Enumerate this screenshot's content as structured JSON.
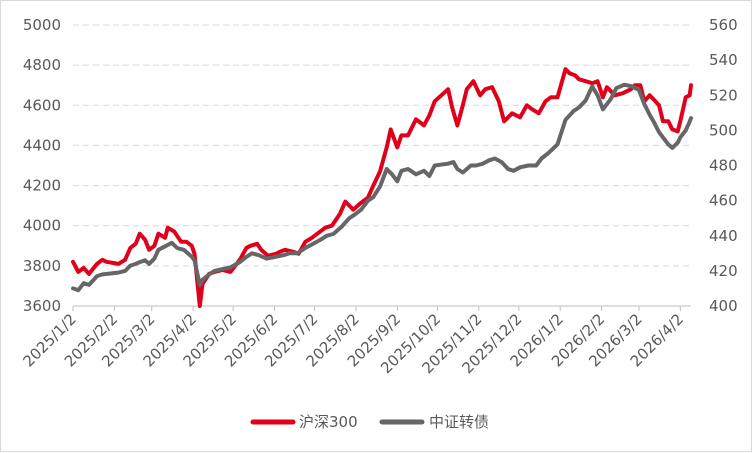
{
  "chart_data": {
    "type": "line",
    "title": "",
    "xlabel": "",
    "ylabel_left": "",
    "ylabel_right": "",
    "x_tick_labels": [
      "2025/1/2",
      "2025/2/2",
      "2025/3/2",
      "2025/4/2",
      "2025/5/2",
      "2025/6/2",
      "2025/7/2",
      "2025/8/2",
      "2025/9/2",
      "2025/10/2",
      "2025/11/2",
      "2025/12/2",
      "2026/1/2",
      "2026/2/2",
      "2026/3/2",
      "2026/4/2"
    ],
    "y_left": {
      "min": 3600,
      "max": 5000,
      "ticks": [
        3600,
        3800,
        4000,
        4200,
        4400,
        4600,
        4800,
        5000
      ]
    },
    "y_right": {
      "min": 400,
      "max": 560,
      "ticks": [
        400,
        420,
        440,
        460,
        480,
        500,
        520,
        540,
        560
      ]
    },
    "x_range": [
      "2025-01-02",
      "2026-04-10"
    ],
    "grid": "horizontal-dashed",
    "legend_position": "bottom",
    "series": [
      {
        "name": "沪深300",
        "axis": "left",
        "color": "#e0001b",
        "points": [
          [
            "2025-01-02",
            3820
          ],
          [
            "2025-01-06",
            3770
          ],
          [
            "2025-01-10",
            3790
          ],
          [
            "2025-01-14",
            3760
          ],
          [
            "2025-01-20",
            3810
          ],
          [
            "2025-01-24",
            3830
          ],
          [
            "2025-01-27",
            3820
          ],
          [
            "2025-02-05",
            3810
          ],
          [
            "2025-02-10",
            3830
          ],
          [
            "2025-02-14",
            3890
          ],
          [
            "2025-02-18",
            3910
          ],
          [
            "2025-02-21",
            3960
          ],
          [
            "2025-02-25",
            3930
          ],
          [
            "2025-02-28",
            3880
          ],
          [
            "2025-03-04",
            3900
          ],
          [
            "2025-03-07",
            3960
          ],
          [
            "2025-03-12",
            3940
          ],
          [
            "2025-03-14",
            3990
          ],
          [
            "2025-03-19",
            3970
          ],
          [
            "2025-03-24",
            3920
          ],
          [
            "2025-03-28",
            3920
          ],
          [
            "2025-04-01",
            3900
          ],
          [
            "2025-04-03",
            3860
          ],
          [
            "2025-04-07",
            3600
          ],
          [
            "2025-04-09",
            3710
          ],
          [
            "2025-04-14",
            3760
          ],
          [
            "2025-04-18",
            3770
          ],
          [
            "2025-04-24",
            3780
          ],
          [
            "2025-04-30",
            3770
          ],
          [
            "2025-05-07",
            3830
          ],
          [
            "2025-05-12",
            3890
          ],
          [
            "2025-05-15",
            3900
          ],
          [
            "2025-05-20",
            3910
          ],
          [
            "2025-05-23",
            3880
          ],
          [
            "2025-05-28",
            3850
          ],
          [
            "2025-06-03",
            3860
          ],
          [
            "2025-06-06",
            3870
          ],
          [
            "2025-06-10",
            3880
          ],
          [
            "2025-06-16",
            3870
          ],
          [
            "2025-06-20",
            3860
          ],
          [
            "2025-06-25",
            3920
          ],
          [
            "2025-06-30",
            3940
          ],
          [
            "2025-07-04",
            3960
          ],
          [
            "2025-07-10",
            3990
          ],
          [
            "2025-07-15",
            4000
          ],
          [
            "2025-07-21",
            4060
          ],
          [
            "2025-07-25",
            4120
          ],
          [
            "2025-07-31",
            4080
          ],
          [
            "2025-08-05",
            4110
          ],
          [
            "2025-08-11",
            4140
          ],
          [
            "2025-08-15",
            4200
          ],
          [
            "2025-08-20",
            4270
          ],
          [
            "2025-08-25",
            4390
          ],
          [
            "2025-08-28",
            4480
          ],
          [
            "2025-09-02",
            4390
          ],
          [
            "2025-09-05",
            4450
          ],
          [
            "2025-09-10",
            4450
          ],
          [
            "2025-09-16",
            4530
          ],
          [
            "2025-09-22",
            4500
          ],
          [
            "2025-09-26",
            4550
          ],
          [
            "2025-09-30",
            4620
          ],
          [
            "2025-10-10",
            4680
          ],
          [
            "2025-10-13",
            4590
          ],
          [
            "2025-10-17",
            4500
          ],
          [
            "2025-10-21",
            4600
          ],
          [
            "2025-10-24",
            4680
          ],
          [
            "2025-10-29",
            4720
          ],
          [
            "2025-11-03",
            4650
          ],
          [
            "2025-11-07",
            4680
          ],
          [
            "2025-11-12",
            4690
          ],
          [
            "2025-11-17",
            4620
          ],
          [
            "2025-11-21",
            4520
          ],
          [
            "2025-11-27",
            4560
          ],
          [
            "2025-12-03",
            4540
          ],
          [
            "2025-12-08",
            4600
          ],
          [
            "2025-12-12",
            4580
          ],
          [
            "2025-12-17",
            4560
          ],
          [
            "2025-12-22",
            4620
          ],
          [
            "2025-12-26",
            4640
          ],
          [
            "2025-12-31",
            4640
          ],
          [
            "2026-01-06",
            4780
          ],
          [
            "2026-01-09",
            4760
          ],
          [
            "2026-01-13",
            4750
          ],
          [
            "2026-01-16",
            4730
          ],
          [
            "2026-01-21",
            4720
          ],
          [
            "2026-01-26",
            4710
          ],
          [
            "2026-01-30",
            4720
          ],
          [
            "2026-02-03",
            4640
          ],
          [
            "2026-02-06",
            4690
          ],
          [
            "2026-02-12",
            4650
          ],
          [
            "2026-02-18",
            4660
          ],
          [
            "2026-02-24",
            4680
          ],
          [
            "2026-02-27",
            4700
          ],
          [
            "2026-03-03",
            4700
          ],
          [
            "2026-03-06",
            4620
          ],
          [
            "2026-03-10",
            4650
          ],
          [
            "2026-03-13",
            4630
          ],
          [
            "2026-03-17",
            4600
          ],
          [
            "2026-03-20",
            4520
          ],
          [
            "2026-03-24",
            4520
          ],
          [
            "2026-03-27",
            4480
          ],
          [
            "2026-03-31",
            4470
          ],
          [
            "2026-04-02",
            4520
          ],
          [
            "2026-04-06",
            4640
          ],
          [
            "2026-04-09",
            4650
          ],
          [
            "2026-04-10",
            4700
          ]
        ]
      },
      {
        "name": "中证转债",
        "axis": "right",
        "color": "#666666",
        "points": [
          [
            "2025-01-02",
            410
          ],
          [
            "2025-01-06",
            409
          ],
          [
            "2025-01-10",
            413
          ],
          [
            "2025-01-14",
            412
          ],
          [
            "2025-01-20",
            417
          ],
          [
            "2025-01-24",
            418
          ],
          [
            "2025-02-05",
            419
          ],
          [
            "2025-02-10",
            420
          ],
          [
            "2025-02-14",
            423
          ],
          [
            "2025-02-18",
            424
          ],
          [
            "2025-02-21",
            425
          ],
          [
            "2025-02-25",
            426
          ],
          [
            "2025-02-28",
            424
          ],
          [
            "2025-03-04",
            427
          ],
          [
            "2025-03-07",
            432
          ],
          [
            "2025-03-12",
            434
          ],
          [
            "2025-03-17",
            436
          ],
          [
            "2025-03-21",
            433
          ],
          [
            "2025-03-26",
            432
          ],
          [
            "2025-04-01",
            428
          ],
          [
            "2025-04-03",
            426
          ],
          [
            "2025-04-07",
            412
          ],
          [
            "2025-04-09",
            415
          ],
          [
            "2025-04-14",
            418
          ],
          [
            "2025-04-18",
            420
          ],
          [
            "2025-04-24",
            421
          ],
          [
            "2025-04-30",
            422
          ],
          [
            "2025-05-07",
            425
          ],
          [
            "2025-05-12",
            428
          ],
          [
            "2025-05-16",
            430
          ],
          [
            "2025-05-21",
            429
          ],
          [
            "2025-05-27",
            427
          ],
          [
            "2025-06-03",
            428
          ],
          [
            "2025-06-09",
            429
          ],
          [
            "2025-06-13",
            430
          ],
          [
            "2025-06-19",
            430
          ],
          [
            "2025-06-25",
            433
          ],
          [
            "2025-06-30",
            435
          ],
          [
            "2025-07-07",
            438
          ],
          [
            "2025-07-11",
            440
          ],
          [
            "2025-07-16",
            441
          ],
          [
            "2025-07-22",
            445
          ],
          [
            "2025-07-28",
            450
          ],
          [
            "2025-08-01",
            452
          ],
          [
            "2025-08-06",
            455
          ],
          [
            "2025-08-11",
            460
          ],
          [
            "2025-08-15",
            462
          ],
          [
            "2025-08-20",
            468
          ],
          [
            "2025-08-25",
            478
          ],
          [
            "2025-08-29",
            475
          ],
          [
            "2025-09-02",
            471
          ],
          [
            "2025-09-05",
            477
          ],
          [
            "2025-09-10",
            478
          ],
          [
            "2025-09-16",
            475
          ],
          [
            "2025-09-22",
            477
          ],
          [
            "2025-09-26",
            474
          ],
          [
            "2025-09-30",
            480
          ],
          [
            "2025-10-10",
            481
          ],
          [
            "2025-10-14",
            482
          ],
          [
            "2025-10-17",
            478
          ],
          [
            "2025-10-21",
            476
          ],
          [
            "2025-10-27",
            480
          ],
          [
            "2025-10-31",
            480
          ],
          [
            "2025-11-05",
            481
          ],
          [
            "2025-11-10",
            483
          ],
          [
            "2025-11-14",
            484
          ],
          [
            "2025-11-19",
            482
          ],
          [
            "2025-11-24",
            478
          ],
          [
            "2025-11-28",
            477
          ],
          [
            "2025-12-03",
            479
          ],
          [
            "2025-12-09",
            480
          ],
          [
            "2025-12-15",
            480
          ],
          [
            "2025-12-19",
            484
          ],
          [
            "2025-12-24",
            487
          ],
          [
            "2025-12-31",
            492
          ],
          [
            "2026-01-06",
            506
          ],
          [
            "2026-01-12",
            511
          ],
          [
            "2026-01-16",
            513
          ],
          [
            "2026-01-21",
            517
          ],
          [
            "2026-01-26",
            525
          ],
          [
            "2026-01-30",
            520
          ],
          [
            "2026-02-03",
            512
          ],
          [
            "2026-02-09",
            518
          ],
          [
            "2026-02-13",
            524
          ],
          [
            "2026-02-19",
            526
          ],
          [
            "2026-02-25",
            525
          ],
          [
            "2026-03-02",
            523
          ],
          [
            "2026-03-06",
            515
          ],
          [
            "2026-03-10",
            509
          ],
          [
            "2026-03-13",
            505
          ],
          [
            "2026-03-17",
            499
          ],
          [
            "2026-03-20",
            496
          ],
          [
            "2026-03-24",
            492
          ],
          [
            "2026-03-27",
            490
          ],
          [
            "2026-03-31",
            493
          ],
          [
            "2026-04-02",
            496
          ],
          [
            "2026-04-06",
            500
          ],
          [
            "2026-04-09",
            505
          ],
          [
            "2026-04-10",
            507
          ]
        ]
      }
    ]
  }
}
